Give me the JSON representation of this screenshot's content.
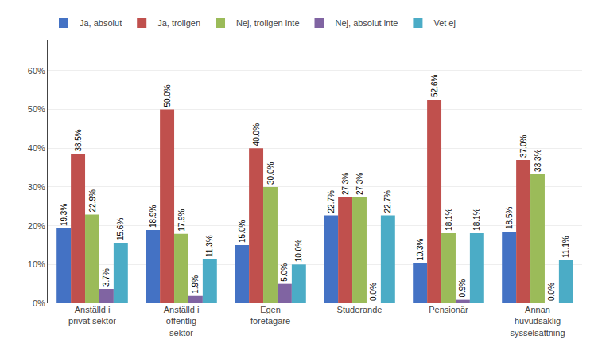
{
  "chart_data": {
    "type": "bar",
    "categories": [
      "Anställd i\nprivat sektor",
      "Anställd i\noffentlig\nsektor",
      "Egen\nföretagare",
      "Studerande",
      "Pensionär",
      "Annan\nhuvudsaklig\nsysselsättning"
    ],
    "series": [
      {
        "name": "Ja, absolut",
        "color": "#4472C4",
        "values": [
          19.3,
          18.9,
          15.0,
          22.7,
          10.3,
          18.5
        ],
        "value_labels": [
          "19.3%",
          "18.9%",
          "15.0%",
          "22.7%",
          "10.3%",
          "18.5%"
        ]
      },
      {
        "name": "Ja, troligen",
        "color": "#C0504D",
        "values": [
          38.5,
          50.0,
          40.0,
          27.3,
          52.6,
          37.0
        ],
        "value_labels": [
          "38.5%",
          "50.0%",
          "40.0%",
          "27.3%",
          "52.6%",
          "37.0%"
        ]
      },
      {
        "name": "Nej, troligen inte",
        "color": "#9BBB59",
        "values": [
          22.9,
          17.9,
          30.0,
          27.3,
          18.1,
          33.3
        ],
        "value_labels": [
          "22.9%",
          "17.9%",
          "30.0%",
          "27.3%",
          "18.1%",
          "33.3%"
        ]
      },
      {
        "name": "Nej, absolut inte",
        "color": "#8064A2",
        "values": [
          3.7,
          1.9,
          5.0,
          0.0,
          0.9,
          0.0
        ],
        "value_labels": [
          "3.7%",
          "1.9%",
          "5.0%",
          "0.0%",
          "0.9%",
          "0.0%"
        ]
      },
      {
        "name": "Vet ej",
        "color": "#4BACC6",
        "values": [
          15.6,
          11.3,
          10.0,
          22.7,
          18.1,
          11.1
        ],
        "value_labels": [
          "15.6%",
          "11.3%",
          "10.0%",
          "22.7%",
          "18.1%",
          "11.1%"
        ]
      }
    ],
    "ylim": [
      0,
      68
    ],
    "yticks": [
      {
        "value": 0,
        "label": "0%"
      },
      {
        "value": 10,
        "label": "10%"
      },
      {
        "value": 20,
        "label": "20%"
      },
      {
        "value": 30,
        "label": "30%"
      },
      {
        "value": 40,
        "label": "40%"
      },
      {
        "value": 50,
        "label": "50%"
      },
      {
        "value": 60,
        "label": "60%"
      }
    ],
    "grid": true,
    "legend": "upper left",
    "data_labels": true
  }
}
